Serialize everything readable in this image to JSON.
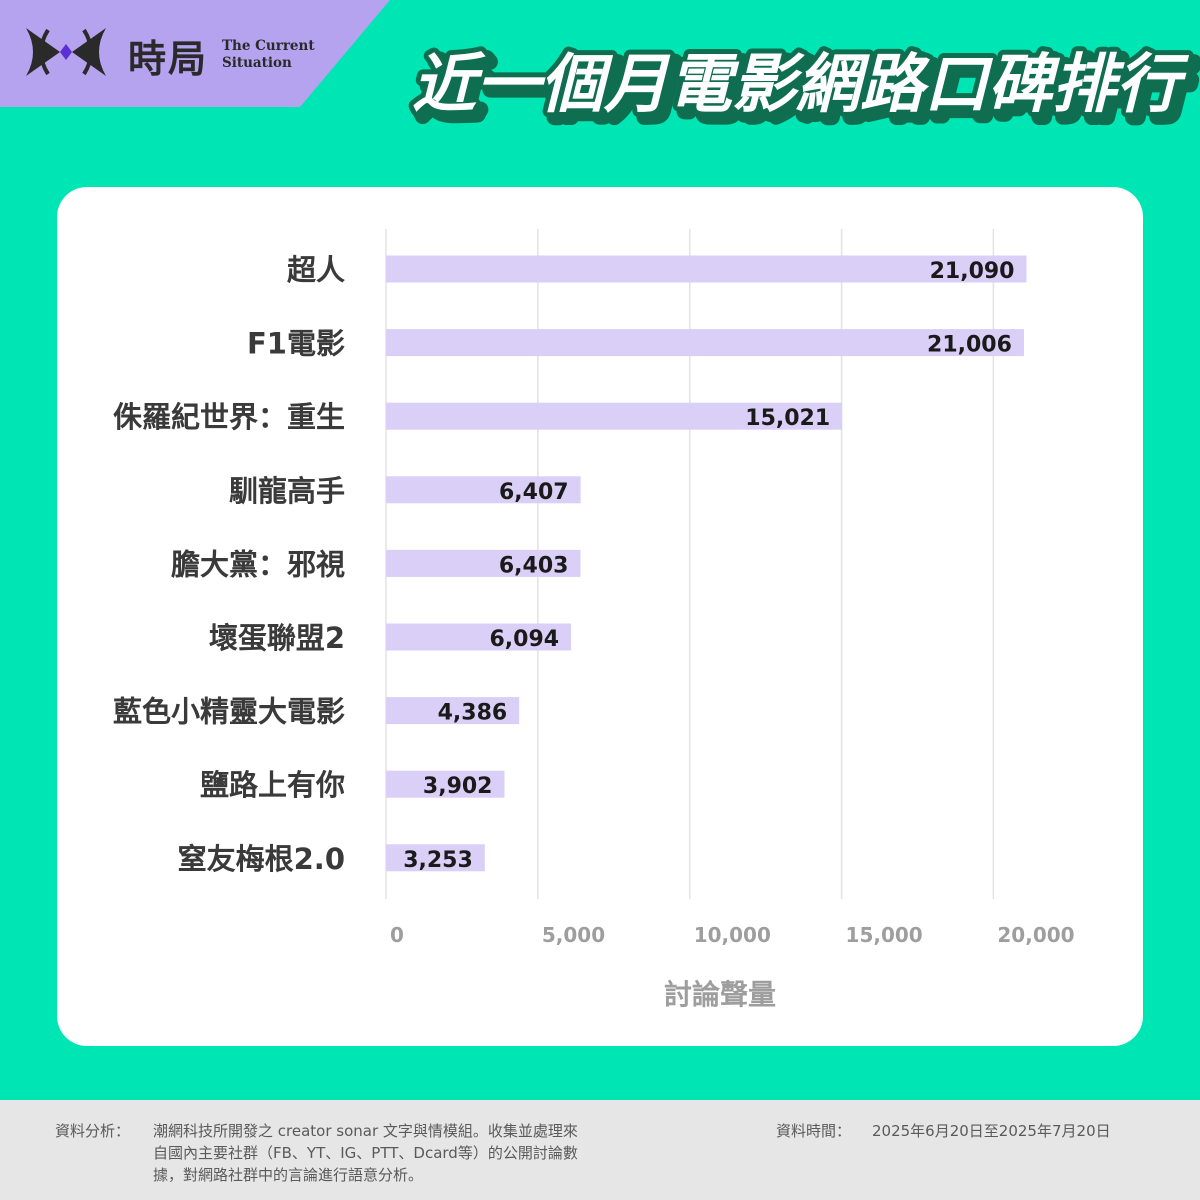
{
  "brand": {
    "name_cn": "時局",
    "name_en_line1": "The Current",
    "name_en_line2": "Situation",
    "tab_color": "#b6a3f0",
    "logo_icon": "bowtie-eye-logo"
  },
  "header": {
    "title": "近一個月電影網路口碑排行",
    "title_fill": "#ffffff",
    "title_outline": "#0f6e4f"
  },
  "colors": {
    "background": "#00e5b4",
    "card": "#ffffff",
    "bar": "#d9cff7",
    "grid": "#e3e3e3",
    "axis_text": "#9e9e9e",
    "label_text": "#3a3a3a"
  },
  "chart_data": {
    "type": "bar",
    "orientation": "horizontal",
    "categories": [
      "超人",
      "F1電影",
      "侏羅紀世界：重生",
      "馴龍高手",
      "膽大黨：邪視",
      "壞蛋聯盟2",
      "藍色小精靈大電影",
      "鹽路上有你",
      "窒友梅根2.0"
    ],
    "values": [
      21090,
      21006,
      15021,
      6407,
      6403,
      6094,
      4386,
      3902,
      3253
    ],
    "value_labels": [
      "21,090",
      "21,006",
      "15,021",
      "6,407",
      "6,403",
      "6,094",
      "4,386",
      "3,902",
      "3,253"
    ],
    "xticks": [
      0,
      5000,
      10000,
      15000,
      20000
    ],
    "xtick_labels": [
      "0",
      "5,000",
      "10,000",
      "15,000",
      "20,000"
    ],
    "xlabel": "討論聲量",
    "xlim": [
      0,
      20000
    ],
    "grid": true
  },
  "footer": {
    "source_label": "資料分析：",
    "source_lines": [
      "潮網科技所開發之 creator sonar 文字與情模組。收集並處理來",
      "自國內主要社群（FB、YT、IG、PTT、Dcard等）的公開討論數",
      "據，對網路社群中的言論進行語意分析。"
    ],
    "date_label": "資料時間：",
    "date_range": "2025年6月20日至2025年7月20日"
  }
}
